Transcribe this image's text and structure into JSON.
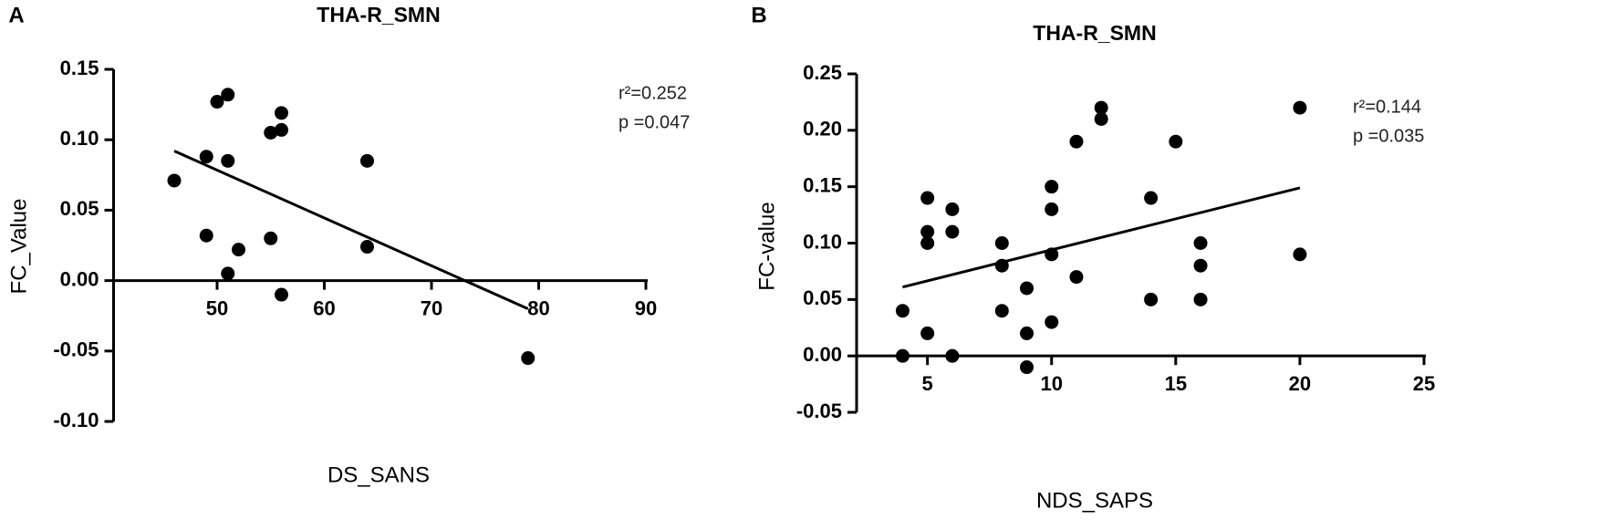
{
  "chart_data": [
    {
      "type": "scatter",
      "panel": "A",
      "title": "THA-R_SMN",
      "xlabel": "DS_SANS",
      "ylabel": "FC_Value",
      "x": [
        46,
        49,
        49,
        50,
        51,
        51,
        51,
        52,
        55,
        55,
        56,
        56,
        56,
        64,
        64,
        79
      ],
      "y": [
        0.071,
        0.088,
        0.032,
        0.127,
        0.132,
        0.085,
        0.005,
        0.022,
        0.105,
        0.03,
        0.119,
        0.107,
        -0.01,
        0.085,
        0.024,
        -0.055
      ],
      "fit": {
        "x": [
          46,
          79
        ],
        "y": [
          0.092,
          -0.02
        ]
      },
      "annotations": [
        "r²=0.252",
        "p =0.047"
      ],
      "color": "#000000",
      "xlim": [
        40,
        90
      ],
      "xticks": [
        50,
        60,
        70,
        80,
        90
      ],
      "ylim": [
        -0.1,
        0.15
      ],
      "yticks": [
        {
          "value": -0.1,
          "label": "-0.10"
        },
        -0.05,
        {
          "value": 0,
          "label": "0.00"
        },
        0.05,
        {
          "value": 0.1,
          "label": "0.10"
        },
        0.15
      ]
    },
    {
      "type": "scatter",
      "panel": "B",
      "title": "THA-R_SMN",
      "xlabel": "NDS_SAPS",
      "ylabel": "FC-value",
      "x": [
        4,
        4,
        5,
        5,
        5,
        5,
        6,
        6,
        6,
        8,
        8,
        8,
        9,
        9,
        9,
        10,
        10,
        10,
        10,
        11,
        11,
        12,
        12,
        14,
        14,
        15,
        16,
        16,
        16,
        20,
        20
      ],
      "y": [
        0.04,
        0.0,
        0.14,
        0.11,
        0.1,
        0.02,
        0.13,
        0.11,
        0.0,
        0.1,
        0.08,
        0.04,
        0.06,
        0.02,
        -0.01,
        0.15,
        0.13,
        0.09,
        0.03,
        0.19,
        0.07,
        0.22,
        0.21,
        0.14,
        0.05,
        0.19,
        0.1,
        0.08,
        0.05,
        0.22,
        0.09
      ],
      "fit": {
        "x": [
          4,
          20
        ],
        "y": [
          0.061,
          0.149
        ]
      },
      "annotations": [
        "r²=0.144",
        "p =0.035"
      ],
      "color": "#000000",
      "xlim": [
        2,
        25
      ],
      "xticks": [
        5,
        10,
        15,
        20,
        25
      ],
      "ylim": [
        -0.05,
        0.25
      ],
      "yticks": [
        -0.05,
        {
          "value": 0,
          "label": "0.00"
        },
        0.05,
        {
          "value": 0.1,
          "label": "0.10"
        },
        0.15,
        {
          "value": 0.2,
          "label": "0.20"
        },
        0.25
      ]
    }
  ]
}
